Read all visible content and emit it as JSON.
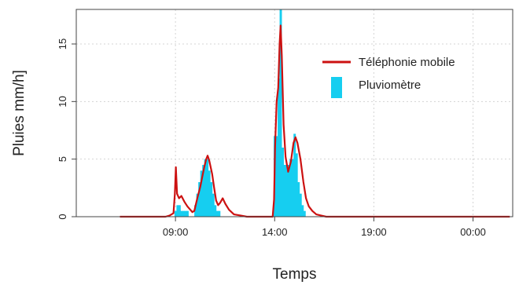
{
  "chart_data": {
    "type": "area",
    "title": "",
    "xlabel": "Temps",
    "ylabel": "Pluies mm/h]",
    "x_unit": "hours",
    "xlim": [
      4.0,
      26.0
    ],
    "ylim": [
      0,
      18
    ],
    "x_ticks": [
      {
        "value": 9,
        "label": "09:00"
      },
      {
        "value": 14,
        "label": "14:00"
      },
      {
        "value": 19,
        "label": "19:00"
      },
      {
        "value": 24,
        "label": "00:00"
      }
    ],
    "y_ticks": [
      {
        "value": 0,
        "label": "0"
      },
      {
        "value": 5,
        "label": "5"
      },
      {
        "value": 10,
        "label": "10"
      },
      {
        "value": 15,
        "label": "15"
      }
    ],
    "grid": true,
    "legend_position": "top-right",
    "series": [
      {
        "name": "Téléphonie mobile",
        "kind": "line",
        "color": "#cc1111",
        "points": [
          [
            6.2,
            0
          ],
          [
            8.2,
            0
          ],
          [
            8.5,
            0
          ],
          [
            8.7,
            0.1
          ],
          [
            8.9,
            0.3
          ],
          [
            8.97,
            2.0
          ],
          [
            9.02,
            4.3
          ],
          [
            9.08,
            2.0
          ],
          [
            9.18,
            1.6
          ],
          [
            9.3,
            1.8
          ],
          [
            9.45,
            1.3
          ],
          [
            9.6,
            0.9
          ],
          [
            9.75,
            0.6
          ],
          [
            9.85,
            0.4
          ],
          [
            9.95,
            0.5
          ],
          [
            10.1,
            1.6
          ],
          [
            10.25,
            2.6
          ],
          [
            10.45,
            4.3
          ],
          [
            10.55,
            5.0
          ],
          [
            10.62,
            5.3
          ],
          [
            10.7,
            4.9
          ],
          [
            10.85,
            3.7
          ],
          [
            10.95,
            2.5
          ],
          [
            11.05,
            1.4
          ],
          [
            11.15,
            1.0
          ],
          [
            11.25,
            1.2
          ],
          [
            11.38,
            1.6
          ],
          [
            11.52,
            1.1
          ],
          [
            11.7,
            0.6
          ],
          [
            11.95,
            0.2
          ],
          [
            12.3,
            0.1
          ],
          [
            12.6,
            0
          ],
          [
            13.9,
            0
          ],
          [
            13.97,
            1.5
          ],
          [
            14.02,
            6.0
          ],
          [
            14.1,
            10.0
          ],
          [
            14.18,
            11.2
          ],
          [
            14.25,
            15.0
          ],
          [
            14.3,
            16.6
          ],
          [
            14.36,
            14.0
          ],
          [
            14.45,
            8.0
          ],
          [
            14.55,
            5.2
          ],
          [
            14.68,
            3.9
          ],
          [
            14.82,
            4.8
          ],
          [
            14.95,
            6.4
          ],
          [
            15.05,
            6.9
          ],
          [
            15.15,
            6.4
          ],
          [
            15.3,
            5.0
          ],
          [
            15.45,
            3.0
          ],
          [
            15.58,
            1.6
          ],
          [
            15.72,
            0.9
          ],
          [
            15.9,
            0.5
          ],
          [
            16.1,
            0.2
          ],
          [
            16.35,
            0.1
          ],
          [
            16.6,
            0
          ],
          [
            20.0,
            0
          ],
          [
            25.85,
            0
          ]
        ]
      },
      {
        "name": "Pluviomètre",
        "kind": "bar",
        "color": "#16cef0",
        "bars": [
          [
            9.0,
            0.5
          ],
          [
            9.1,
            1.0
          ],
          [
            9.2,
            1.0
          ],
          [
            9.3,
            0.5
          ],
          [
            9.4,
            0.5
          ],
          [
            9.5,
            0.5
          ],
          [
            9.6,
            0.5
          ],
          [
            10.0,
            1.0
          ],
          [
            10.1,
            2.0
          ],
          [
            10.2,
            3.0
          ],
          [
            10.3,
            4.0
          ],
          [
            10.4,
            4.5
          ],
          [
            10.5,
            5.0
          ],
          [
            10.6,
            5.0
          ],
          [
            10.7,
            4.0
          ],
          [
            10.8,
            3.0
          ],
          [
            10.9,
            2.0
          ],
          [
            11.0,
            1.0
          ],
          [
            11.1,
            0.5
          ],
          [
            11.2,
            0.5
          ],
          [
            14.0,
            7.0
          ],
          [
            14.1,
            7.0
          ],
          [
            14.2,
            12.0
          ],
          [
            14.3,
            18.0
          ],
          [
            14.4,
            6.0
          ],
          [
            14.5,
            4.5
          ],
          [
            14.6,
            4.5
          ],
          [
            14.7,
            4.5
          ],
          [
            14.8,
            5.0
          ],
          [
            14.9,
            5.0
          ],
          [
            15.0,
            7.2
          ],
          [
            15.1,
            5.5
          ],
          [
            15.2,
            3.0
          ],
          [
            15.3,
            2.0
          ],
          [
            15.4,
            1.0
          ],
          [
            15.5,
            0.5
          ]
        ]
      }
    ]
  }
}
